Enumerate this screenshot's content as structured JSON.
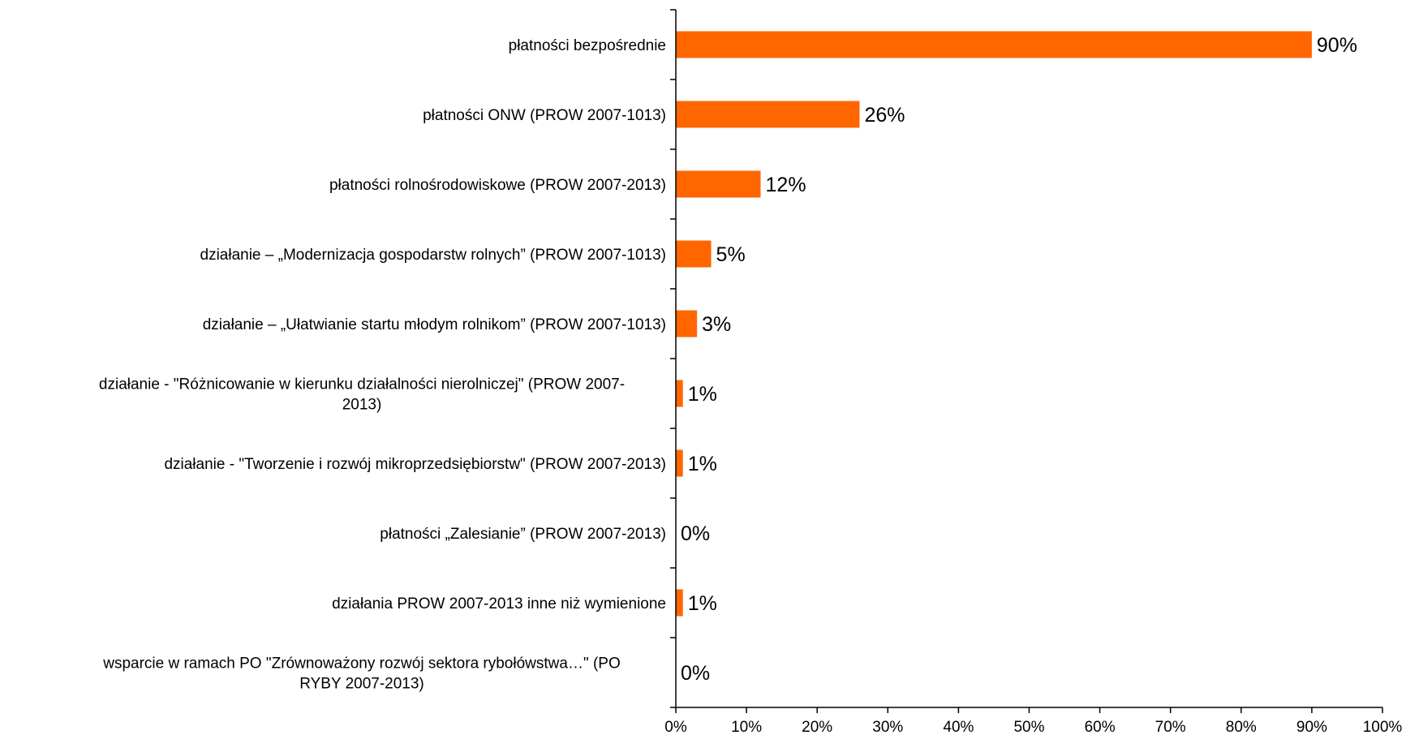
{
  "chart_data": {
    "type": "bar",
    "orientation": "horizontal",
    "title": "",
    "xlabel": "",
    "ylabel": "",
    "xlim": [
      0,
      100
    ],
    "x_ticks": [
      "0%",
      "10%",
      "20%",
      "30%",
      "40%",
      "50%",
      "60%",
      "70%",
      "80%",
      "90%",
      "100%"
    ],
    "grid": false,
    "legend": "none",
    "bar_color": "#FF6600",
    "categories": [
      [
        "płatności bezpośrednie"
      ],
      [
        "płatności ONW (PROW 2007-1013)"
      ],
      [
        "płatności rolnośrodowiskowe (PROW 2007-2013)"
      ],
      [
        "działanie – „Modernizacja gospodarstw rolnych” (PROW 2007-1013)"
      ],
      [
        "działanie – „Ułatwianie startu młodym rolnikom” (PROW 2007-1013)"
      ],
      [
        "działanie - \"Różnicowanie w kierunku działalności nierolniczej\" (PROW 2007-",
        "2013)"
      ],
      [
        "działanie - \"Tworzenie i rozwój mikroprzedsiębiorstw\" (PROW 2007-2013)"
      ],
      [
        "płatności „Zalesianie” (PROW 2007-2013)"
      ],
      [
        "działania PROW 2007-2013 inne niż wymienione"
      ],
      [
        "wsparcie w ramach PO \"Zrównoważony rozwój sektora rybołówstwa…\" (PO",
        "RYBY 2007-2013)"
      ]
    ],
    "values": [
      90,
      26,
      12,
      5,
      3,
      1,
      1,
      0,
      1,
      0
    ],
    "value_labels": [
      "90%",
      "26%",
      "12%",
      "5%",
      "3%",
      "1%",
      "1%",
      "0%",
      "1%",
      "0%"
    ]
  }
}
